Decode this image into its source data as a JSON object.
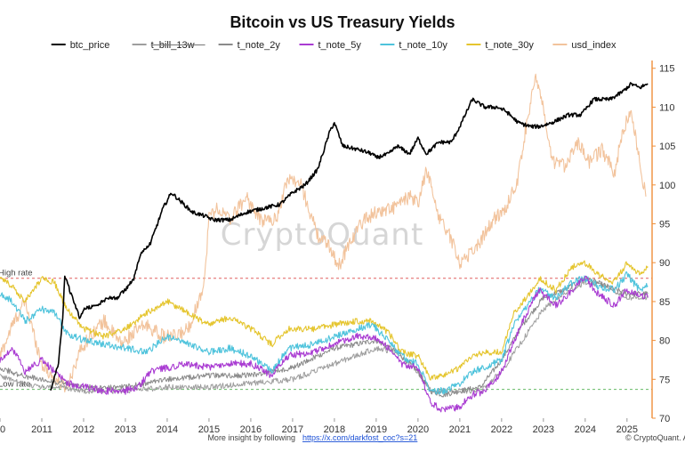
{
  "chart_data": {
    "type": "line",
    "title": "Bitcoin vs US Treasury Yields",
    "watermark": "CryptoQuant",
    "footer_text": "More insight by following",
    "footer_link": "https://x.com/darkfost_coc?s=21",
    "copyright": "© CryptoQuant. All ri",
    "x_ticks": [
      "0",
      "2011",
      "2012",
      "2013",
      "2014",
      "2015",
      "2016",
      "2017",
      "2018",
      "2019",
      "2020",
      "2021",
      "2022",
      "2023",
      "2024",
      "2025"
    ],
    "right_axis": {
      "ticks": [
        70,
        75,
        80,
        85,
        90,
        95,
        100,
        105,
        110,
        115
      ],
      "ylim": [
        70,
        116
      ],
      "color": "#ef8f3a"
    },
    "reference_lines": [
      {
        "label": "High rate",
        "value": 88,
        "color": "#e06060"
      },
      {
        "label": "Low rate",
        "value": 73.7,
        "color": "#66bb66"
      }
    ],
    "series": [
      {
        "name": "btc_price",
        "color": "#000000",
        "width": 1.6,
        "noise": 0.25,
        "x": [
          2011.2,
          2011.4,
          2011.5,
          2011.55,
          2011.7,
          2011.9,
          2012.0,
          2012.3,
          2012.6,
          2012.8,
          2013.0,
          2013.2,
          2013.35,
          2013.6,
          2013.9,
          2014.1,
          2014.3,
          2014.6,
          2014.9,
          2015.1,
          2015.5,
          2015.9,
          2016.3,
          2016.7,
          2017.0,
          2017.3,
          2017.6,
          2017.9,
          2018.0,
          2018.2,
          2018.6,
          2018.9,
          2019.0,
          2019.3,
          2019.5,
          2019.8,
          2020.0,
          2020.2,
          2020.5,
          2020.8,
          2021.0,
          2021.3,
          2021.6,
          2021.9,
          2022.1,
          2022.4,
          2022.7,
          2022.9,
          2023.2,
          2023.6,
          2023.9,
          2024.2,
          2024.6,
          2024.9,
          2025.1,
          2025.3,
          2025.5
        ],
        "y": [
          73.5,
          77,
          83,
          88.3,
          86,
          83,
          84,
          84.5,
          85.5,
          85.5,
          86.5,
          88,
          91,
          92.5,
          97,
          99,
          98,
          96.5,
          96,
          95.5,
          95.5,
          96.5,
          97,
          97.5,
          99,
          100,
          102,
          107,
          108,
          105,
          104.5,
          104,
          103.5,
          104,
          105,
          104,
          106,
          104,
          105.5,
          105.5,
          107.5,
          111,
          110,
          110,
          109.5,
          108,
          107.5,
          107.5,
          108,
          109,
          109,
          111,
          111,
          112,
          113,
          112.5,
          113
        ]
      },
      {
        "name": "t_bill_13w",
        "color": "#9e9e9e",
        "width": 1.0,
        "noise": 0.35,
        "x": [
          2010.0,
          2010.5,
          2011.0,
          2011.5,
          2012.0,
          2013.0,
          2014.0,
          2015.0,
          2016.0,
          2017.0,
          2018.0,
          2019.0,
          2019.5,
          2020.0,
          2020.3,
          2020.6,
          2021.0,
          2021.5,
          2022.0,
          2022.5,
          2023.0,
          2023.5,
          2024.0,
          2024.5,
          2025.0,
          2025.5
        ],
        "y": [
          75.5,
          74.5,
          74,
          74,
          73.5,
          73.5,
          74,
          74,
          74.5,
          75,
          77,
          79,
          78.5,
          76,
          73.5,
          73.5,
          73.5,
          73.5,
          76,
          80,
          84,
          86,
          87.5,
          87,
          85.5,
          85.5
        ]
      },
      {
        "name": "t_note_2y",
        "color": "#8a8a8a",
        "width": 1.0,
        "noise": 0.35,
        "x": [
          2010.0,
          2010.5,
          2011.0,
          2011.5,
          2012.0,
          2013.0,
          2014.0,
          2015.0,
          2016.0,
          2017.0,
          2018.0,
          2019.0,
          2019.5,
          2020.0,
          2020.3,
          2020.6,
          2021.0,
          2021.5,
          2022.0,
          2022.5,
          2023.0,
          2023.5,
          2024.0,
          2024.5,
          2025.0,
          2025.5
        ],
        "y": [
          76.5,
          75.5,
          75,
          74.5,
          74,
          74,
          75,
          75.5,
          75.5,
          76.5,
          79,
          80,
          78.5,
          76,
          73.5,
          73,
          73.5,
          74,
          77.5,
          82,
          85.5,
          86.5,
          88,
          87,
          86,
          86
        ]
      },
      {
        "name": "t_note_5y",
        "color": "#a93bd2",
        "width": 1.1,
        "noise": 0.45,
        "x": [
          2010.0,
          2010.3,
          2010.6,
          2011.0,
          2011.3,
          2011.6,
          2012.0,
          2012.5,
          2013.0,
          2013.3,
          2013.6,
          2014.0,
          2014.5,
          2015.0,
          2015.5,
          2016.0,
          2016.5,
          2016.9,
          2017.5,
          2018.0,
          2018.5,
          2018.9,
          2019.3,
          2019.6,
          2020.0,
          2020.3,
          2020.6,
          2021.0,
          2021.3,
          2021.6,
          2022.0,
          2022.3,
          2022.6,
          2022.9,
          2023.3,
          2023.7,
          2024.0,
          2024.3,
          2024.7,
          2025.0,
          2025.3,
          2025.5
        ],
        "y": [
          77.5,
          79,
          76,
          77.5,
          76,
          74.5,
          74,
          73.5,
          73.5,
          74,
          76,
          76.5,
          77,
          76.5,
          77,
          77,
          75.5,
          78,
          78.5,
          79.5,
          80.5,
          80.5,
          79,
          77,
          76.5,
          72,
          71,
          71.5,
          73,
          73.5,
          76,
          80,
          83.5,
          86.5,
          84.5,
          86.5,
          88,
          86,
          84.5,
          86.5,
          86,
          85.5
        ]
      },
      {
        "name": "t_note_10y",
        "color": "#4ec3dc",
        "width": 1.1,
        "noise": 0.45,
        "x": [
          2010.0,
          2010.3,
          2010.6,
          2011.0,
          2011.3,
          2011.6,
          2012.0,
          2012.5,
          2013.0,
          2013.5,
          2014.0,
          2014.5,
          2015.0,
          2015.5,
          2016.0,
          2016.5,
          2016.9,
          2017.5,
          2018.0,
          2018.5,
          2018.9,
          2019.3,
          2019.6,
          2020.0,
          2020.3,
          2020.6,
          2021.0,
          2021.3,
          2021.6,
          2022.0,
          2022.3,
          2022.6,
          2022.9,
          2023.3,
          2023.7,
          2024.0,
          2024.3,
          2024.7,
          2025.0,
          2025.3,
          2025.5
        ],
        "y": [
          86,
          85,
          82.5,
          84,
          83.5,
          81,
          80,
          79.5,
          79,
          78.5,
          80.5,
          79.5,
          78.5,
          79,
          78,
          76,
          79,
          79.5,
          80.5,
          81.5,
          82,
          80,
          78,
          77,
          73.5,
          73.5,
          74.5,
          76,
          76.5,
          77.5,
          82,
          84.5,
          86.5,
          85.5,
          87.5,
          88,
          87,
          86.5,
          88.5,
          86.5,
          87
        ]
      },
      {
        "name": "t_note_30y",
        "color": "#e5c52e",
        "width": 1.1,
        "noise": 0.4,
        "x": [
          2010.0,
          2010.3,
          2010.6,
          2011.0,
          2011.3,
          2011.6,
          2012.0,
          2012.5,
          2013.0,
          2013.5,
          2014.0,
          2014.5,
          2015.0,
          2015.5,
          2016.0,
          2016.5,
          2016.9,
          2017.5,
          2018.0,
          2018.5,
          2018.9,
          2019.3,
          2019.6,
          2020.0,
          2020.3,
          2020.6,
          2021.0,
          2021.3,
          2021.6,
          2022.0,
          2022.3,
          2022.6,
          2022.9,
          2023.3,
          2023.7,
          2024.0,
          2024.3,
          2024.7,
          2025.0,
          2025.3,
          2025.5
        ],
        "y": [
          88,
          87,
          85,
          88,
          87.5,
          84,
          81.5,
          80.5,
          81.5,
          83.5,
          85,
          83.5,
          82,
          83,
          81.5,
          79.5,
          81.5,
          81.5,
          82,
          82.5,
          82.5,
          81,
          78.5,
          78,
          75,
          75.5,
          76.5,
          78,
          78.5,
          78.5,
          83.5,
          85.5,
          88,
          86.5,
          89.5,
          90,
          88.5,
          87.5,
          90,
          88.5,
          89.5
        ]
      },
      {
        "name": "usd_index",
        "color": "#f2c39c",
        "width": 1.1,
        "noise": 0.9,
        "x": [
          2010.0,
          2010.3,
          2010.6,
          2011.0,
          2011.3,
          2011.6,
          2011.9,
          2012.2,
          2012.5,
          2012.9,
          2013.2,
          2013.5,
          2013.9,
          2014.2,
          2014.5,
          2014.75,
          2014.9,
          2015.0,
          2015.2,
          2015.5,
          2015.9,
          2016.2,
          2016.6,
          2016.9,
          2017.2,
          2017.6,
          2017.9,
          2018.1,
          2018.4,
          2018.7,
          2019.0,
          2019.4,
          2019.8,
          2020.0,
          2020.2,
          2020.5,
          2020.8,
          2021.0,
          2021.4,
          2021.8,
          2022.1,
          2022.4,
          2022.6,
          2022.8,
          2022.95,
          2023.2,
          2023.5,
          2023.8,
          2024.1,
          2024.4,
          2024.7,
          2024.9,
          2025.1,
          2025.3,
          2025.45
        ],
        "y": [
          78,
          82,
          85,
          77,
          75,
          74,
          78.5,
          81,
          82.5,
          79.5,
          81,
          82,
          80.5,
          80.5,
          81.5,
          85,
          88,
          96,
          97,
          95.5,
          98.5,
          95.5,
          95.5,
          101,
          100,
          93.5,
          92,
          89.5,
          93,
          95.5,
          96.5,
          97,
          98.5,
          97.5,
          102,
          96,
          93,
          90,
          92,
          95.5,
          97,
          101,
          108,
          114,
          111,
          103,
          102.5,
          105.5,
          103,
          104.5,
          101.5,
          107,
          109.5,
          103,
          98.5
        ]
      }
    ]
  }
}
